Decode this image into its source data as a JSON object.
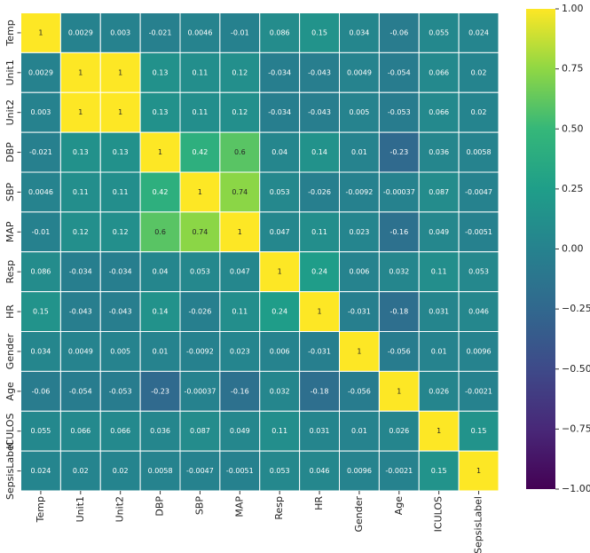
{
  "chart_data": {
    "type": "heatmap",
    "categories": [
      "Temp",
      "Unit1",
      "Unit2",
      "DBP",
      "SBP",
      "MAP",
      "Resp",
      "HR",
      "Gender",
      "Age",
      "ICULOS",
      "SepsisLabel"
    ],
    "values": [
      [
        1,
        0.0029,
        0.003,
        -0.021,
        0.0046,
        -0.01,
        0.086,
        0.15,
        0.034,
        -0.06,
        0.055,
        0.024
      ],
      [
        0.0029,
        1,
        1,
        0.13,
        0.11,
        0.12,
        -0.034,
        -0.043,
        0.0049,
        -0.054,
        0.066,
        0.02
      ],
      [
        0.003,
        1,
        1,
        0.13,
        0.11,
        0.12,
        -0.034,
        -0.043,
        0.005,
        -0.053,
        0.066,
        0.02
      ],
      [
        -0.021,
        0.13,
        0.13,
        1,
        0.42,
        0.6,
        0.04,
        0.14,
        0.01,
        -0.23,
        0.036,
        0.0058
      ],
      [
        0.0046,
        0.11,
        0.11,
        0.42,
        1,
        0.74,
        0.053,
        -0.026,
        -0.0092,
        -0.00037,
        0.087,
        -0.0047
      ],
      [
        -0.01,
        0.12,
        0.12,
        0.6,
        0.74,
        1,
        0.047,
        0.11,
        0.023,
        -0.16,
        0.049,
        -0.0051
      ],
      [
        0.086,
        -0.034,
        -0.034,
        0.04,
        0.053,
        0.047,
        1,
        0.24,
        0.006,
        0.032,
        0.11,
        0.053
      ],
      [
        0.15,
        -0.043,
        -0.043,
        0.14,
        -0.026,
        0.11,
        0.24,
        1,
        -0.031,
        -0.18,
        0.031,
        0.046
      ],
      [
        0.034,
        0.0049,
        0.005,
        0.01,
        -0.0092,
        0.023,
        0.006,
        -0.031,
        1,
        -0.056,
        0.01,
        0.0096
      ],
      [
        -0.06,
        -0.054,
        -0.053,
        -0.23,
        -0.00037,
        -0.16,
        0.032,
        -0.18,
        -0.056,
        1,
        0.026,
        -0.0021
      ],
      [
        0.055,
        0.066,
        0.066,
        0.036,
        0.087,
        0.049,
        0.11,
        0.031,
        0.01,
        0.026,
        1,
        0.15
      ],
      [
        0.024,
        0.02,
        0.02,
        0.0058,
        -0.0047,
        -0.0051,
        0.053,
        0.046,
        0.0096,
        -0.0021,
        0.15,
        1
      ]
    ],
    "colormap": "viridis",
    "clim": [
      -1,
      1
    ],
    "cticks": [
      {
        "value": -1,
        "label": "−1.00"
      },
      {
        "value": -0.75,
        "label": "−0.75"
      },
      {
        "value": -0.5,
        "label": "−0.50"
      },
      {
        "value": -0.25,
        "label": "−0.25"
      },
      {
        "value": 0,
        "label": "0.00"
      },
      {
        "value": 0.25,
        "label": "0.25"
      },
      {
        "value": 0.5,
        "label": "0.50"
      },
      {
        "value": 0.75,
        "label": "0.75"
      },
      {
        "value": 1,
        "label": "1.00"
      }
    ]
  }
}
